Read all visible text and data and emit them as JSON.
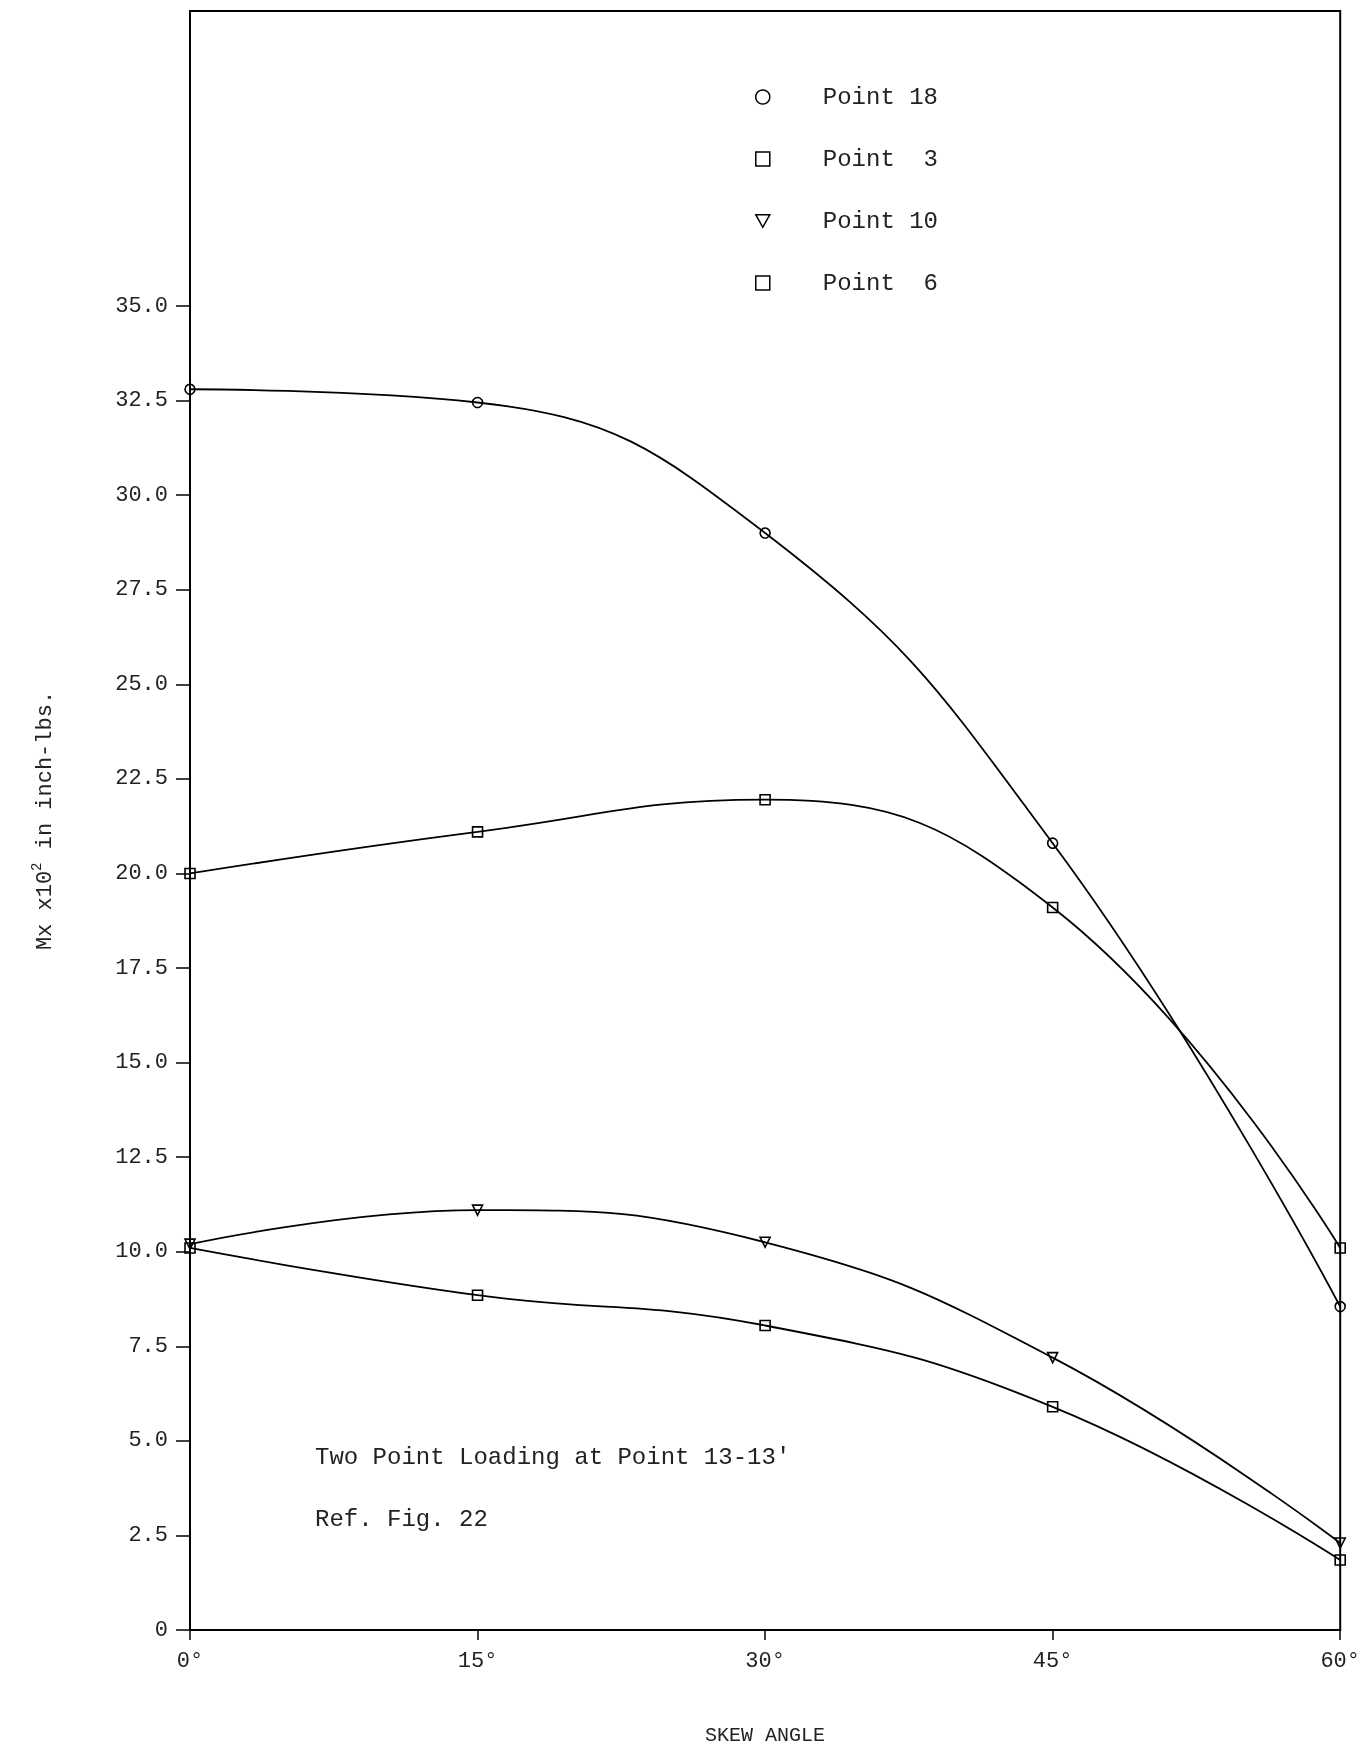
{
  "chart_data": {
    "type": "line",
    "xlabel": "SKEW ANGLE",
    "ylabel": "Mx x10$^{2}$ in inch-lbs.",
    "x": [
      0,
      15,
      30,
      45,
      60
    ],
    "series": [
      {
        "name": "Point 18",
        "color": "#000000",
        "marker": "circle",
        "values": [
          32.8,
          32.45,
          29.0,
          20.8,
          8.55
        ]
      },
      {
        "name": "Point  3",
        "color": "#000000",
        "marker": "square",
        "values": [
          20.0,
          21.1,
          21.95,
          19.1,
          10.1
        ]
      },
      {
        "name": "Point 10",
        "color": "#000000",
        "marker": "triangle",
        "values": [
          10.2,
          11.1,
          10.25,
          7.2,
          2.3
        ]
      },
      {
        "name": "Point  6",
        "color": "#000000",
        "marker": "square",
        "values": [
          10.1,
          8.85,
          8.05,
          5.9,
          1.85
        ]
      }
    ],
    "xlim": [
      0,
      60
    ],
    "xticks": [
      {
        "value": 0,
        "label": "0°"
      },
      {
        "value": 15,
        "label": "15°"
      },
      {
        "value": 30,
        "label": "30°"
      },
      {
        "value": 45,
        "label": "45°"
      },
      {
        "value": 60,
        "label": "60°"
      }
    ],
    "ylim": [
      0,
      42.8
    ],
    "yticks": [
      0,
      2.5,
      {
        "value": 5,
        "label": "5.0"
      },
      7.5,
      {
        "value": 10,
        "label": "10.0"
      },
      12.5,
      {
        "value": 15,
        "label": "15.0"
      },
      17.5,
      {
        "value": 20,
        "label": "20.0"
      },
      22.5,
      {
        "value": 25,
        "label": "25.0"
      },
      27.5,
      {
        "value": 30,
        "label": "30.0"
      },
      32.5,
      {
        "value": 35,
        "label": "35.0"
      }
    ],
    "annotations": [
      "Two Point Loading at Point 13-13'",
      "Ref. Fig. 22"
    ],
    "legend": "top right",
    "grid": false,
    "line_style": "solid"
  }
}
